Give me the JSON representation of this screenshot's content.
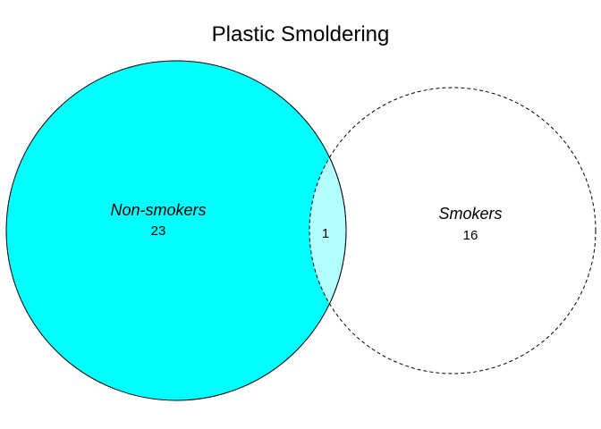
{
  "title": "Plastic Smoldering",
  "sets": [
    {
      "name": "Non-smokers",
      "count": "23",
      "fill_color": "#00ffff",
      "border": "solid"
    },
    {
      "name": "Smokers",
      "count": "16",
      "fill_color": "#ffffff",
      "border": "dashed"
    }
  ],
  "intersection": {
    "count": "1",
    "fill_color": "#b3ffff"
  }
}
